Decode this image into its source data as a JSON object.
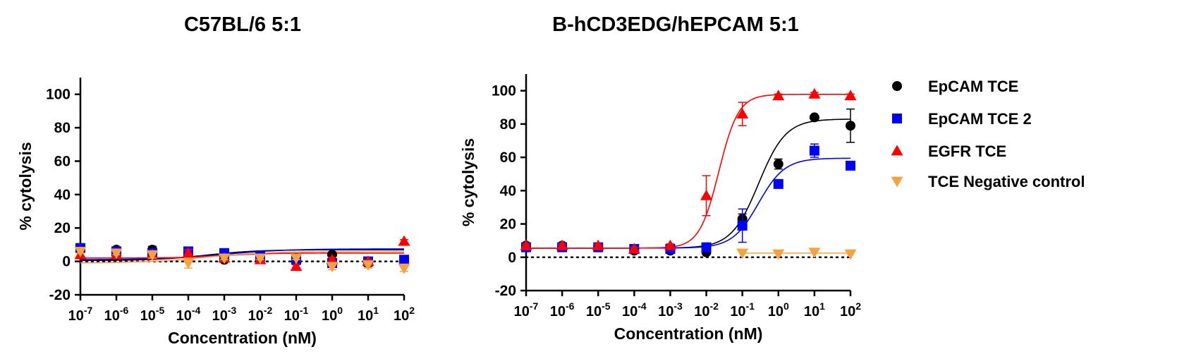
{
  "chart_data": [
    {
      "type": "scatter",
      "title": "C57BL/6 5:1",
      "xlabel": "Concentration (nM)",
      "ylabel": "% cytolysis",
      "x_scale": "log10",
      "xlim": [
        -7,
        2
      ],
      "ylim": [
        -20,
        110
      ],
      "x_ticks": [
        {
          "base": "10",
          "exp": "-7"
        },
        {
          "base": "10",
          "exp": "-6"
        },
        {
          "base": "10",
          "exp": "-5"
        },
        {
          "base": "10",
          "exp": "-4"
        },
        {
          "base": "10",
          "exp": "-3"
        },
        {
          "base": "10",
          "exp": "-2"
        },
        {
          "base": "10",
          "exp": "-1"
        },
        {
          "base": "10",
          "exp": "0"
        },
        {
          "base": "10",
          "exp": "1"
        },
        {
          "base": "10",
          "exp": "2"
        }
      ],
      "y_ticks": [
        "-20",
        "0",
        "20",
        "40",
        "60",
        "80",
        "100"
      ],
      "baseline": 0,
      "series": [
        {
          "key": "epcam",
          "x": [
            -7,
            -6,
            -5,
            -4,
            -3,
            -2,
            -1,
            0,
            1,
            2
          ],
          "y": [
            7,
            7,
            7,
            4,
            1,
            2,
            2,
            4,
            -1,
            -1
          ],
          "err": [
            1,
            1.5,
            2,
            2,
            1,
            1,
            1,
            1.5,
            2,
            2
          ],
          "fit": {
            "bottom": 0.5,
            "top": 7,
            "logec50": -3.5,
            "hill": 0.6
          }
        },
        {
          "key": "epcam2",
          "x": [
            -7,
            -6,
            -5,
            -4,
            -3,
            -2,
            -1,
            0,
            1,
            2
          ],
          "y": [
            8,
            6,
            5,
            6,
            5,
            3,
            1,
            -1,
            0,
            1
          ],
          "err": [
            1.5,
            1.5,
            2,
            1.5,
            1,
            1,
            1,
            2,
            1.5,
            1.5
          ],
          "fit": {
            "bottom": 1,
            "top": 7.5,
            "logec50": -3,
            "hill": 0.5
          }
        },
        {
          "key": "egfr",
          "x": [
            -7,
            -6,
            -5,
            -4,
            -3,
            -2,
            -1,
            0,
            1,
            2
          ],
          "y": [
            4,
            4,
            4,
            5,
            2,
            1,
            -3,
            1,
            0,
            12
          ],
          "err": [
            1,
            1.5,
            1.5,
            2,
            1,
            1,
            1,
            1.5,
            1,
            1
          ],
          "fit": {
            "bottom": 2,
            "top": 5,
            "logec50": -3,
            "hill": 0.7
          }
        },
        {
          "key": "negctrl",
          "x": [
            -7,
            -6,
            -5,
            -4,
            -3,
            -2,
            -1,
            0,
            1,
            2
          ],
          "y": [
            6,
            5,
            4,
            -1,
            2,
            2,
            2,
            -3,
            -2,
            -4
          ],
          "err": [
            1,
            1,
            2,
            3,
            1,
            1,
            1,
            2,
            2,
            2
          ],
          "fit": {
            "bottom": -1,
            "top": 6,
            "logec50": -3.5,
            "hill": 0.5
          }
        }
      ]
    },
    {
      "type": "scatter",
      "title": "B-hCD3EDG/hEPCAM 5:1",
      "xlabel": "Concentration (nM)",
      "ylabel": "% cytolysis",
      "x_scale": "log10",
      "xlim": [
        -7,
        2
      ],
      "ylim": [
        -20,
        110
      ],
      "x_ticks": [
        {
          "base": "10",
          "exp": "-7"
        },
        {
          "base": "10",
          "exp": "-6"
        },
        {
          "base": "10",
          "exp": "-5"
        },
        {
          "base": "10",
          "exp": "-4"
        },
        {
          "base": "10",
          "exp": "-3"
        },
        {
          "base": "10",
          "exp": "-2"
        },
        {
          "base": "10",
          "exp": "-1"
        },
        {
          "base": "10",
          "exp": "0"
        },
        {
          "base": "10",
          "exp": "1"
        },
        {
          "base": "10",
          "exp": "2"
        }
      ],
      "y_ticks": [
        "-20",
        "0",
        "20",
        "40",
        "60",
        "80",
        "100"
      ],
      "baseline": 0,
      "series": [
        {
          "key": "epcam",
          "x": [
            -7,
            -6,
            -5,
            -4,
            -3,
            -2,
            -1,
            0,
            1,
            2
          ],
          "y": [
            7,
            7,
            6,
            4,
            4,
            3,
            23,
            56,
            84,
            79
          ],
          "err": [
            1,
            1,
            1.5,
            1,
            1,
            1,
            3,
            3,
            0,
            10
          ],
          "fit": {
            "bottom": 5.5,
            "top": 83,
            "logec50": -0.55,
            "hill": 1.15
          }
        },
        {
          "key": "epcam2",
          "x": [
            -7,
            -6,
            -5,
            -4,
            -3,
            -2,
            -1,
            0,
            1,
            2
          ],
          "y": [
            6,
            6,
            6,
            5,
            5,
            6,
            19,
            44,
            64,
            55
          ],
          "err": [
            1,
            1,
            1,
            1,
            1,
            1,
            10,
            2,
            4,
            1
          ],
          "fit": {
            "bottom": 5.5,
            "top": 59.5,
            "logec50": -0.55,
            "hill": 1.2
          }
        },
        {
          "key": "egfr",
          "x": [
            -7,
            -6,
            -5,
            -4,
            -3,
            -2,
            -1,
            0,
            1,
            2
          ],
          "y": [
            7,
            7,
            7,
            5,
            7,
            37,
            86,
            97,
            98,
            97
          ],
          "err": [
            1,
            1,
            1,
            1,
            1,
            12,
            7,
            1,
            1,
            1
          ],
          "fit": {
            "bottom": 5.5,
            "top": 97.8,
            "logec50": -1.65,
            "hill": 1.6
          }
        },
        {
          "key": "negctrl",
          "x": [
            -1,
            0,
            1,
            2
          ],
          "y": [
            2.5,
            2,
            3,
            2
          ],
          "err": [
            0,
            0,
            0,
            0
          ],
          "fit": {
            "bottom": 2.5,
            "top": 2.5,
            "logec50": -1,
            "hill": 1,
            "from": -1
          }
        }
      ]
    }
  ],
  "legend": [
    {
      "key": "epcam",
      "label": "EpCAM TCE",
      "color": "#000000",
      "marker": "circle"
    },
    {
      "key": "epcam2",
      "label": "EpCAM TCE 2",
      "color": "#0000ff",
      "marker": "square"
    },
    {
      "key": "egfr",
      "label": "EGFR TCE",
      "color": "#ff0000",
      "marker": "triangle-up"
    },
    {
      "key": "negctrl",
      "label": "TCE Negative control",
      "color": "#f4a340",
      "marker": "triangle-down"
    }
  ]
}
